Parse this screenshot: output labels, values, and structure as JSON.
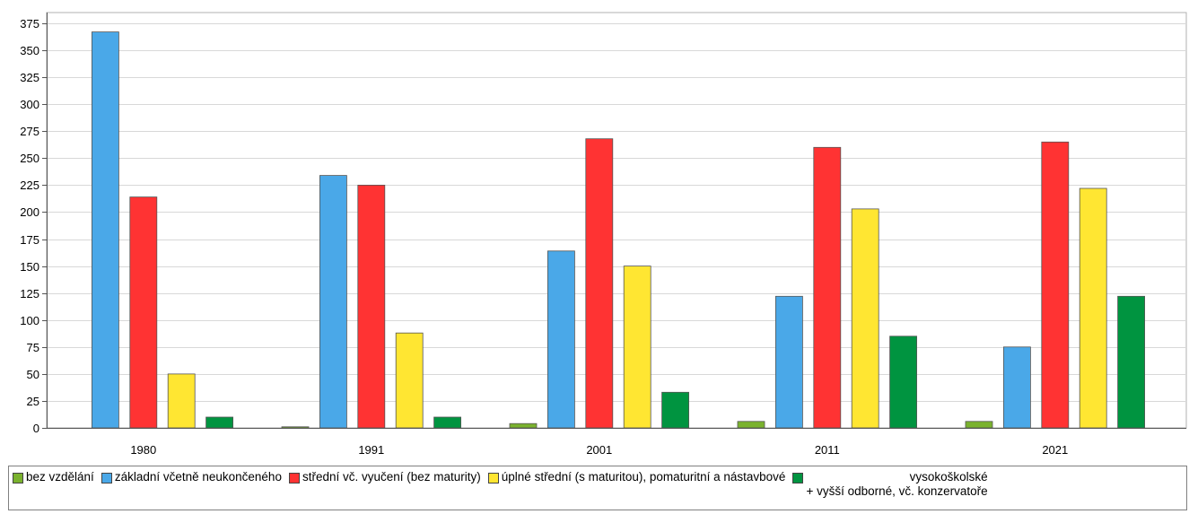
{
  "chart_data": {
    "type": "bar",
    "categories": [
      "1980",
      "1991",
      "2001",
      "2011",
      "2021"
    ],
    "series": [
      {
        "name": "bez vzdělání",
        "color": "#7ab22e",
        "values": [
          0,
          1,
          4,
          6,
          6
        ]
      },
      {
        "name": "základní včetně neukončeného",
        "color": "#4aa8e8",
        "values": [
          367,
          234,
          164,
          122,
          75
        ]
      },
      {
        "name": "střední vč. vyučení (bez maturity)",
        "color": "#ff3333",
        "values": [
          214,
          225,
          268,
          260,
          265
        ]
      },
      {
        "name": "úplné střední (s maturitou), pomaturitní a nástavbové",
        "color": "#ffe632",
        "values": [
          50,
          88,
          150,
          203,
          222
        ]
      },
      {
        "name": "vysokoškolské\n+ vyšší odborné, vč. konzervatoře",
        "color": "#009440",
        "values": [
          10,
          10,
          33,
          85,
          122
        ]
      }
    ],
    "yticks": [
      0,
      25,
      50,
      75,
      100,
      125,
      150,
      175,
      200,
      225,
      250,
      275,
      300,
      325,
      350,
      375
    ],
    "ylim": [
      0,
      385
    ],
    "grid": true,
    "legend_position": "bottom"
  }
}
